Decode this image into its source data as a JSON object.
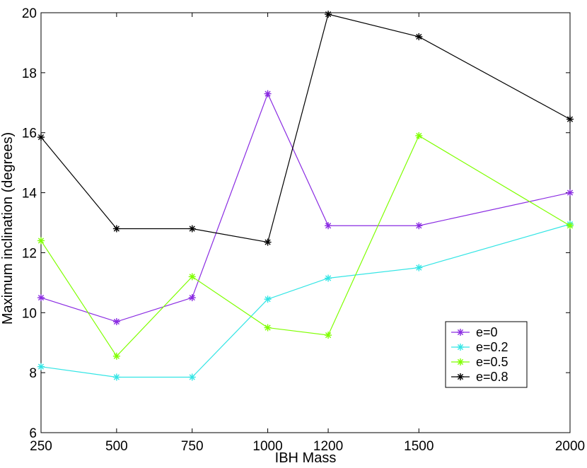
{
  "chart_data": {
    "type": "line",
    "title": "",
    "xlabel": "IBH Mass",
    "ylabel": "Maximum inclination (degrees)",
    "x": [
      250,
      500,
      750,
      1000,
      1200,
      1500,
      2000
    ],
    "x_tick_labels": [
      "250",
      "500",
      "750",
      "1000",
      "1200",
      "1500",
      "2000"
    ],
    "y_ticks": [
      6,
      8,
      10,
      12,
      14,
      16,
      18,
      20
    ],
    "y_tick_labels": [
      "6",
      "8",
      "10",
      "12",
      "14",
      "16",
      "18",
      "20"
    ],
    "ylim": [
      6,
      20
    ],
    "grid": false,
    "legend_position": "bottom-right",
    "series": [
      {
        "name": "e=0",
        "color": "#8a2be2",
        "values": [
          10.5,
          9.7,
          10.5,
          17.3,
          12.9,
          12.9,
          14.0
        ]
      },
      {
        "name": "e=0.2",
        "color": "#33e5e5",
        "values": [
          8.2,
          7.85,
          7.85,
          10.45,
          11.15,
          11.5,
          12.95
        ]
      },
      {
        "name": "e=0.5",
        "color": "#7fff00",
        "values": [
          12.4,
          8.55,
          11.2,
          9.5,
          9.25,
          15.9,
          12.9
        ]
      },
      {
        "name": "e=0.8",
        "color": "#000000",
        "values": [
          15.85,
          12.8,
          12.8,
          12.35,
          19.95,
          19.2,
          16.45
        ]
      }
    ]
  }
}
